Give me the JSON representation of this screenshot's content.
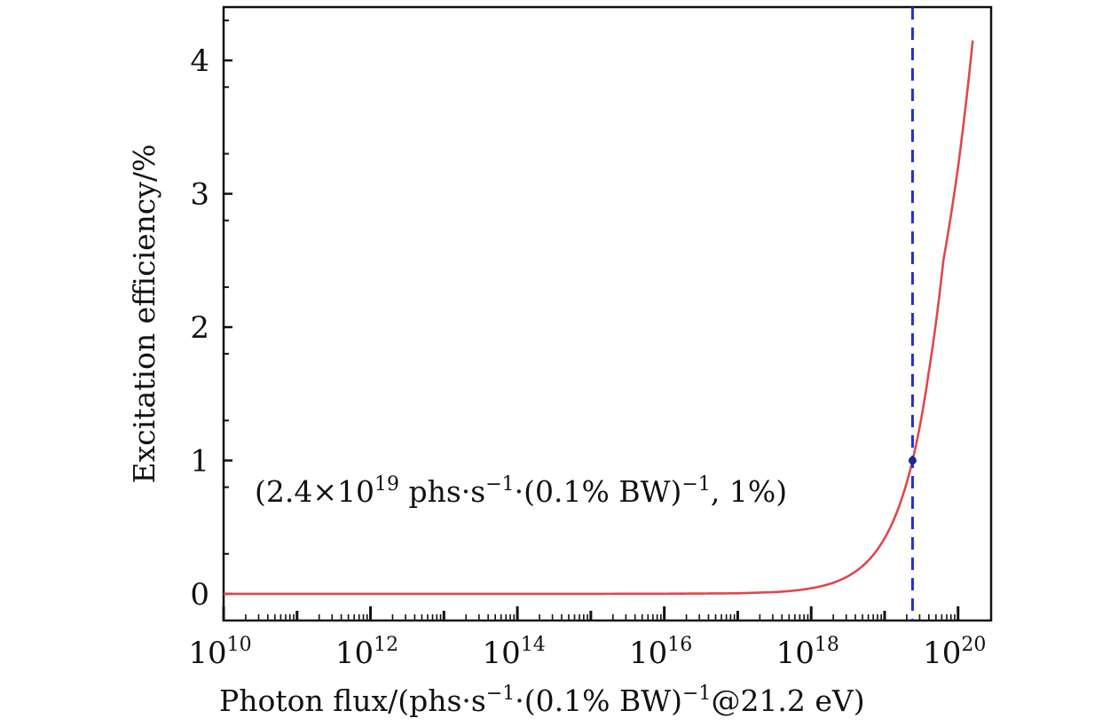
{
  "chart_data": {
    "type": "line",
    "title": "",
    "xscale": "log10",
    "xlim_exp": [
      10,
      20.45
    ],
    "ylim": [
      -0.2,
      4.4
    ],
    "x_ticks": [
      {
        "exp": 10,
        "base": "10",
        "power": "10"
      },
      {
        "exp": 12,
        "base": "10",
        "power": "12"
      },
      {
        "exp": 14,
        "base": "10",
        "power": "14"
      },
      {
        "exp": 16,
        "base": "10",
        "power": "16"
      },
      {
        "exp": 18,
        "base": "10",
        "power": "18"
      },
      {
        "exp": 20,
        "base": "10",
        "power": "20"
      }
    ],
    "y_ticks": [
      {
        "value": 0,
        "label": "0"
      },
      {
        "value": 1,
        "label": "1"
      },
      {
        "value": 2,
        "label": "2"
      },
      {
        "value": 3,
        "label": "3"
      },
      {
        "value": 4,
        "label": "4"
      }
    ],
    "y_minor_step": 0.5,
    "xlabel": {
      "part1": "Photon flux/(phs·s",
      "sup1": "−1",
      "part2": "·(0.1% BW)",
      "sup2": "−1",
      "part3": "@21.2 eV)"
    },
    "ylabel": "Excitation efficiency/%",
    "series": [
      {
        "name": "excitation efficiency",
        "color": "#e0474c",
        "x_exp": [
          10,
          11,
          12,
          13,
          14,
          15,
          16,
          17,
          17.5,
          18,
          18.3,
          18.6,
          18.8,
          19,
          19.2,
          19.38,
          19.6,
          19.8,
          20,
          20.2
        ],
        "y": [
          0,
          0,
          0,
          0,
          0,
          0,
          0.001,
          0.004,
          0.013,
          0.042,
          0.083,
          0.166,
          0.263,
          0.417,
          0.661,
          1.0,
          1.66,
          2.5,
          3.2,
          4.15
        ]
      }
    ],
    "marker": {
      "x_exp": 19.38,
      "y": 1,
      "color": "#1b2a8c",
      "vline_color": "#1f2fd6",
      "label": {
        "open": "(2.4×10",
        "power": "19",
        "middle": " phs·s",
        "sup1": "−1",
        "tail": "·(0.1% BW)",
        "sup2": "−1",
        "end": ", 1%)"
      }
    }
  }
}
